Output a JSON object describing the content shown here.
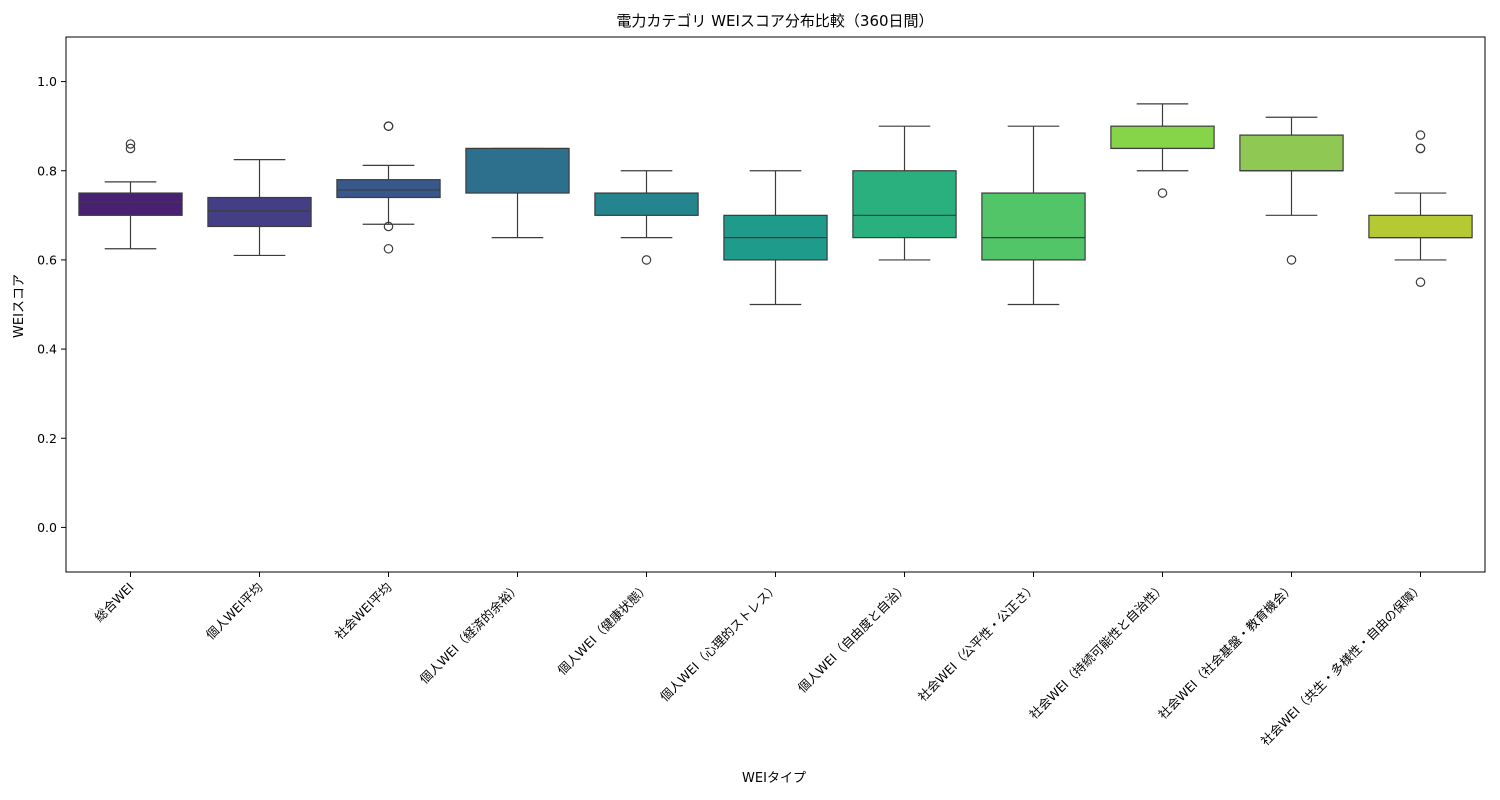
{
  "chart_data": {
    "type": "box",
    "title": "電力カテゴリ WEIスコア分布比較（360日間）",
    "xlabel": "WEIタイプ",
    "ylabel": "WEIスコア",
    "ylim": [
      -0.1,
      1.1
    ],
    "yticks": [
      "0.0",
      "0.2",
      "0.4",
      "0.6",
      "0.8",
      "1.0"
    ],
    "grid": false,
    "palette": "viridis",
    "categories": [
      {
        "label": "総合WEI",
        "color": "#482173",
        "whisker_low": 0.625,
        "q1": 0.7,
        "median": 0.73,
        "q3": 0.75,
        "whisker_high": 0.775,
        "outliers": [
          0.85,
          0.86
        ]
      },
      {
        "label": "個人WEI平均",
        "color": "#433e85",
        "whisker_low": 0.61,
        "q1": 0.675,
        "median": 0.71,
        "q3": 0.74,
        "whisker_high": 0.825,
        "outliers": []
      },
      {
        "label": "社会WEI平均",
        "color": "#38588c",
        "whisker_low": 0.68,
        "q1": 0.74,
        "median": 0.757,
        "q3": 0.78,
        "whisker_high": 0.812,
        "outliers": [
          0.625,
          0.675,
          0.9,
          0.9
        ]
      },
      {
        "label": "個人WEI（経済的余裕）",
        "color": "#2d708e",
        "whisker_low": 0.65,
        "q1": 0.75,
        "median": 0.85,
        "q3": 0.85,
        "whisker_high": 0.85,
        "outliers": []
      },
      {
        "label": "個人WEI（健康状態）",
        "color": "#25858e",
        "whisker_low": 0.65,
        "q1": 0.7,
        "median": 0.75,
        "q3": 0.75,
        "whisker_high": 0.8,
        "outliers": [
          0.6
        ]
      },
      {
        "label": "個人WEI（心理的ストレス）",
        "color": "#1e9b8a",
        "whisker_low": 0.5,
        "q1": 0.6,
        "median": 0.65,
        "q3": 0.7,
        "whisker_high": 0.8,
        "outliers": []
      },
      {
        "label": "個人WEI（自由度と自治）",
        "color": "#2ab07f",
        "whisker_low": 0.6,
        "q1": 0.65,
        "median": 0.7,
        "q3": 0.8,
        "whisker_high": 0.9,
        "outliers": []
      },
      {
        "label": "社会WEI（公平性・公正さ）",
        "color": "#52c569",
        "whisker_low": 0.5,
        "q1": 0.6,
        "median": 0.65,
        "q3": 0.75,
        "whisker_high": 0.9,
        "outliers": []
      },
      {
        "label": "社会WEI（持続可能性と自治性）",
        "color": "#86d549",
        "whisker_low": 0.8,
        "q1": 0.85,
        "median": 0.85,
        "q3": 0.9,
        "whisker_high": 0.95,
        "outliers": [
          0.75
        ]
      },
      {
        "label": "社会WEI（社会基盤・教育機会）",
        "color": "#8fc853",
        "whisker_low": 0.7,
        "q1": 0.8,
        "median": 0.8,
        "q3": 0.88,
        "whisker_high": 0.92,
        "outliers": [
          0.6
        ]
      },
      {
        "label": "社会WEI（共生・多様性・自由の保障）",
        "color": "#b5c932",
        "whisker_low": 0.6,
        "q1": 0.65,
        "median": 0.65,
        "q3": 0.7,
        "whisker_high": 0.75,
        "outliers": [
          0.55,
          0.85,
          0.85,
          0.88
        ]
      }
    ]
  }
}
